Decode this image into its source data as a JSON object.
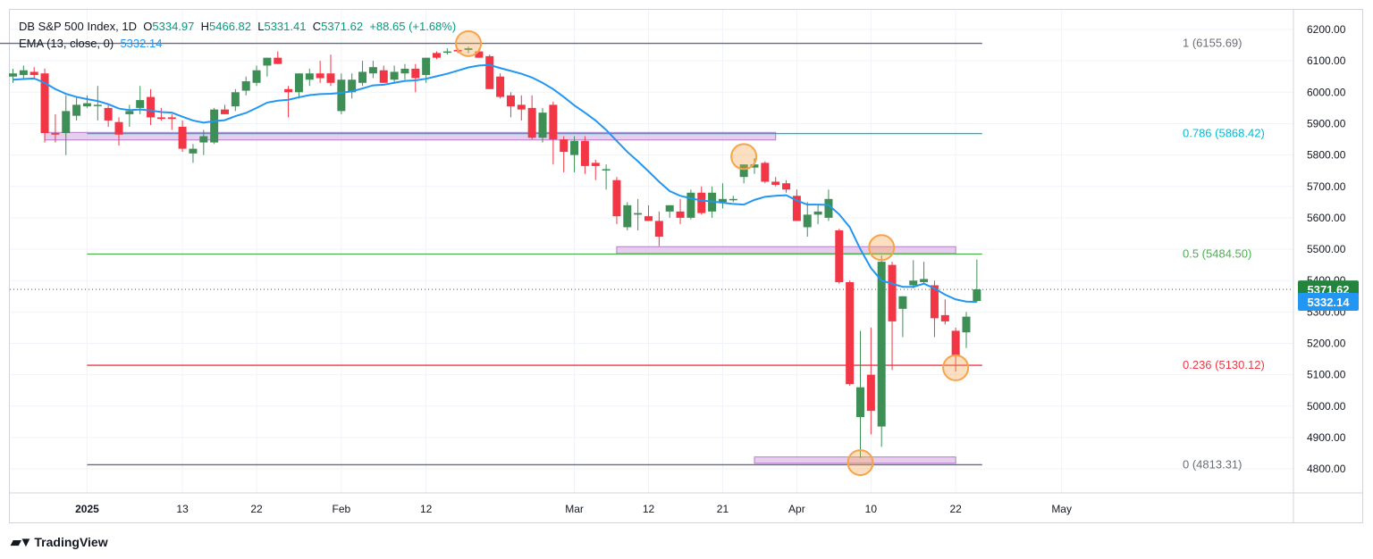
{
  "legend": {
    "symbol": "DB S&P 500 Index, 1D",
    "o_label": "O",
    "o_value": "5334.97",
    "h_label": "H",
    "h_value": "5466.82",
    "l_label": "L",
    "l_value": "5331.41",
    "c_label": "C",
    "c_value": "5371.62",
    "change": "+88.65 (+1.68%)",
    "ema_label": "EMA (13, close, 0)",
    "ema_value": "5332.14"
  },
  "branding": {
    "logo_icon": "tradingview-logo-icon",
    "name": "TradingView"
  },
  "colors": {
    "up": "#3d8f56",
    "down": "#f23645",
    "ema": "#2196f3",
    "fib_1": "#6a6d78",
    "fib_786": "#00bcd4",
    "fib_05": "#4caf50",
    "fib_236": "#f23645",
    "fib_0": "#6a6d78",
    "zone": "#d8b5e4",
    "marker": "#f7a34a",
    "price_tag": "#22843d",
    "ema_tag": "#2196f3"
  },
  "chart_data": {
    "type": "candlestick",
    "title": "DB S&P 500 Index, 1D",
    "ylim": [
      4750,
      6240
    ],
    "y_ticks": [
      "6200.00",
      "6100.00",
      "6000.00",
      "5900.00",
      "5800.00",
      "5700.00",
      "5600.00",
      "5500.00",
      "5400.00",
      "5300.00",
      "5200.00",
      "5100.00",
      "5000.00",
      "4900.00",
      "4800.00"
    ],
    "x_ticks": [
      {
        "label": "2025",
        "i": 7,
        "bold": true
      },
      {
        "label": "13",
        "i": 16
      },
      {
        "label": "22",
        "i": 23
      },
      {
        "label": "Feb",
        "i": 31
      },
      {
        "label": "12",
        "i": 39
      },
      {
        "label": "Mar",
        "i": 53
      },
      {
        "label": "12",
        "i": 60
      },
      {
        "label": "21",
        "i": 67
      },
      {
        "label": "Apr",
        "i": 74
      },
      {
        "label": "10",
        "i": 81
      },
      {
        "label": "22",
        "i": 89
      },
      {
        "label": "May",
        "i": 99
      }
    ],
    "candles": [
      {
        "o": 6050,
        "h": 6075,
        "l": 6030,
        "c": 6060
      },
      {
        "o": 6055,
        "h": 6085,
        "l": 6045,
        "c": 6070
      },
      {
        "o": 6065,
        "h": 6080,
        "l": 6045,
        "c": 6055
      },
      {
        "o": 6060,
        "h": 6075,
        "l": 5840,
        "c": 5870
      },
      {
        "o": 5870,
        "h": 5930,
        "l": 5840,
        "c": 5865
      },
      {
        "o": 5870,
        "h": 5990,
        "l": 5800,
        "c": 5940
      },
      {
        "o": 5925,
        "h": 5985,
        "l": 5910,
        "c": 5960
      },
      {
        "o": 5955,
        "h": 5990,
        "l": 5950,
        "c": 5965
      },
      {
        "o": 5960,
        "h": 6020,
        "l": 5910,
        "c": 5960
      },
      {
        "o": 5950,
        "h": 5960,
        "l": 5890,
        "c": 5910
      },
      {
        "o": 5905,
        "h": 5920,
        "l": 5830,
        "c": 5865
      },
      {
        "o": 5930,
        "h": 5960,
        "l": 5890,
        "c": 5940
      },
      {
        "o": 5950,
        "h": 6020,
        "l": 5930,
        "c": 5975
      },
      {
        "o": 5985,
        "h": 6010,
        "l": 5895,
        "c": 5920
      },
      {
        "o": 5920,
        "h": 5950,
        "l": 5910,
        "c": 5915
      },
      {
        "o": 5920,
        "h": 5930,
        "l": 5880,
        "c": 5915
      },
      {
        "o": 5890,
        "h": 5910,
        "l": 5810,
        "c": 5820
      },
      {
        "o": 5805,
        "h": 5835,
        "l": 5775,
        "c": 5820
      },
      {
        "o": 5840,
        "h": 5880,
        "l": 5800,
        "c": 5860
      },
      {
        "o": 5840,
        "h": 5950,
        "l": 5835,
        "c": 5945
      },
      {
        "o": 5945,
        "h": 5960,
        "l": 5930,
        "c": 5930
      },
      {
        "o": 5955,
        "h": 6010,
        "l": 5940,
        "c": 6000
      },
      {
        "o": 6005,
        "h": 6050,
        "l": 5990,
        "c": 6035
      },
      {
        "o": 6030,
        "h": 6085,
        "l": 6020,
        "c": 6070
      },
      {
        "o": 6085,
        "h": 6110,
        "l": 6050,
        "c": 6110
      },
      {
        "o": 6110,
        "h": 6130,
        "l": 6090,
        "c": 6090
      },
      {
        "o": 6010,
        "h": 6020,
        "l": 5920,
        "c": 6000
      },
      {
        "o": 6000,
        "h": 6060,
        "l": 5980,
        "c": 6060
      },
      {
        "o": 6040,
        "h": 6075,
        "l": 6020,
        "c": 6060
      },
      {
        "o": 6060,
        "h": 6100,
        "l": 6030,
        "c": 6045
      },
      {
        "o": 6060,
        "h": 6120,
        "l": 6020,
        "c": 6030
      },
      {
        "o": 5940,
        "h": 6060,
        "l": 5930,
        "c": 6040
      },
      {
        "o": 6000,
        "h": 6060,
        "l": 5980,
        "c": 6040
      },
      {
        "o": 6030,
        "h": 6100,
        "l": 6020,
        "c": 6065
      },
      {
        "o": 6060,
        "h": 6100,
        "l": 6045,
        "c": 6080
      },
      {
        "o": 6070,
        "h": 6085,
        "l": 6030,
        "c": 6030
      },
      {
        "o": 6040,
        "h": 6085,
        "l": 6030,
        "c": 6065
      },
      {
        "o": 6060,
        "h": 6090,
        "l": 6040,
        "c": 6075
      },
      {
        "o": 6075,
        "h": 6090,
        "l": 6000,
        "c": 6045
      },
      {
        "o": 6055,
        "h": 6110,
        "l": 6030,
        "c": 6110
      },
      {
        "o": 6125,
        "h": 6130,
        "l": 6105,
        "c": 6110
      },
      {
        "o": 6130,
        "h": 6140,
        "l": 6120,
        "c": 6130
      },
      {
        "o": 6135,
        "h": 6140,
        "l": 6125,
        "c": 6130
      },
      {
        "o": 6135,
        "h": 6145,
        "l": 6125,
        "c": 6140
      },
      {
        "o": 6130,
        "h": 6140,
        "l": 6110,
        "c": 6110
      },
      {
        "o": 6115,
        "h": 6120,
        "l": 6010,
        "c": 6010
      },
      {
        "o": 6050,
        "h": 6060,
        "l": 5980,
        "c": 5985
      },
      {
        "o": 5990,
        "h": 6000,
        "l": 5920,
        "c": 5955
      },
      {
        "o": 5960,
        "h": 5990,
        "l": 5910,
        "c": 5945
      },
      {
        "o": 5950,
        "h": 5990,
        "l": 5850,
        "c": 5855
      },
      {
        "o": 5855,
        "h": 5950,
        "l": 5840,
        "c": 5935
      },
      {
        "o": 5960,
        "h": 5970,
        "l": 5770,
        "c": 5850
      },
      {
        "o": 5850,
        "h": 5860,
        "l": 5745,
        "c": 5810
      },
      {
        "o": 5800,
        "h": 5860,
        "l": 5745,
        "c": 5845
      },
      {
        "o": 5845,
        "h": 5860,
        "l": 5740,
        "c": 5765
      },
      {
        "o": 5775,
        "h": 5785,
        "l": 5720,
        "c": 5765
      },
      {
        "o": 5755,
        "h": 5770,
        "l": 5690,
        "c": 5755
      },
      {
        "o": 5720,
        "h": 5730,
        "l": 5580,
        "c": 5605
      },
      {
        "o": 5570,
        "h": 5650,
        "l": 5560,
        "c": 5640
      },
      {
        "o": 5610,
        "h": 5660,
        "l": 5560,
        "c": 5615
      },
      {
        "o": 5605,
        "h": 5640,
        "l": 5590,
        "c": 5590
      },
      {
        "o": 5590,
        "h": 5620,
        "l": 5510,
        "c": 5540
      },
      {
        "o": 5620,
        "h": 5640,
        "l": 5600,
        "c": 5640
      },
      {
        "o": 5620,
        "h": 5660,
        "l": 5580,
        "c": 5600
      },
      {
        "o": 5600,
        "h": 5690,
        "l": 5595,
        "c": 5680
      },
      {
        "o": 5680,
        "h": 5700,
        "l": 5610,
        "c": 5615
      },
      {
        "o": 5620,
        "h": 5700,
        "l": 5600,
        "c": 5680
      },
      {
        "o": 5650,
        "h": 5710,
        "l": 5630,
        "c": 5660
      },
      {
        "o": 5660,
        "h": 5670,
        "l": 5650,
        "c": 5660
      },
      {
        "o": 5730,
        "h": 5770,
        "l": 5710,
        "c": 5770
      },
      {
        "o": 5760,
        "h": 5790,
        "l": 5740,
        "c": 5770
      },
      {
        "o": 5775,
        "h": 5780,
        "l": 5710,
        "c": 5715
      },
      {
        "o": 5715,
        "h": 5730,
        "l": 5700,
        "c": 5705
      },
      {
        "o": 5710,
        "h": 5720,
        "l": 5680,
        "c": 5690
      },
      {
        "o": 5670,
        "h": 5690,
        "l": 5590,
        "c": 5590
      },
      {
        "o": 5570,
        "h": 5650,
        "l": 5540,
        "c": 5610
      },
      {
        "o": 5610,
        "h": 5640,
        "l": 5580,
        "c": 5620
      },
      {
        "o": 5600,
        "h": 5690,
        "l": 5590,
        "c": 5660
      },
      {
        "o": 5560,
        "h": 5565,
        "l": 5390,
        "c": 5395
      },
      {
        "o": 5395,
        "h": 5400,
        "l": 5065,
        "c": 5070
      },
      {
        "o": 4965,
        "h": 5240,
        "l": 4835,
        "c": 5060
      },
      {
        "o": 5100,
        "h": 5250,
        "l": 4910,
        "c": 4985
      },
      {
        "o": 4935,
        "h": 5480,
        "l": 4870,
        "c": 5460
      },
      {
        "o": 5450,
        "h": 5460,
        "l": 5115,
        "c": 5270
      },
      {
        "o": 5310,
        "h": 5350,
        "l": 5220,
        "c": 5350
      },
      {
        "o": 5385,
        "h": 5465,
        "l": 5375,
        "c": 5400
      },
      {
        "o": 5395,
        "h": 5460,
        "l": 5390,
        "c": 5405
      },
      {
        "o": 5385,
        "h": 5400,
        "l": 5220,
        "c": 5280
      },
      {
        "o": 5290,
        "h": 5340,
        "l": 5260,
        "c": 5270
      },
      {
        "o": 5240,
        "h": 5250,
        "l": 5110,
        "c": 5160
      },
      {
        "o": 5235,
        "h": 5300,
        "l": 5185,
        "c": 5285
      },
      {
        "o": 5335,
        "h": 5467,
        "l": 5331,
        "c": 5372
      }
    ],
    "ema": [
      6040,
      6042,
      6044,
      6030,
      6010,
      5995,
      5985,
      5978,
      5972,
      5962,
      5948,
      5943,
      5945,
      5942,
      5937,
      5935,
      5922,
      5910,
      5903,
      5908,
      5911,
      5924,
      5934,
      5950,
      5967,
      5973,
      5976,
      5984,
      5991,
      5994,
      5995,
      5998,
      6003,
      6012,
      6022,
      6024,
      6030,
      6036,
      6038,
      6043,
      6051,
      6059,
      6069,
      6079,
      6085,
      6087,
      6077,
      6068,
      6059,
      6047,
      6030,
      6010,
      5985,
      5958,
      5935,
      5910,
      5880,
      5845,
      5810,
      5780,
      5748,
      5715,
      5685,
      5670,
      5662,
      5655,
      5652,
      5648,
      5644,
      5642,
      5657,
      5667,
      5670,
      5672,
      5655,
      5642,
      5642,
      5641,
      5611,
      5570,
      5500,
      5440,
      5400,
      5390,
      5380,
      5380,
      5390,
      5375,
      5355,
      5340,
      5333,
      5332
    ],
    "fib_levels": [
      {
        "label": "1 (6155.69)",
        "value": 6155.69,
        "color": "#6a6d78",
        "from_i": -2
      },
      {
        "label": "0.786 (5868.42)",
        "value": 5868.42,
        "color": "#00bcd4",
        "from_i": 7
      },
      {
        "label": "0.5 (5484.50)",
        "value": 5484.5,
        "color": "#4caf50",
        "from_i": 7
      },
      {
        "label": "0.236 (5130.12)",
        "value": 5130.12,
        "color": "#f23645",
        "from_i": 7
      },
      {
        "label": "0 (4813.31)",
        "value": 4813.31,
        "color": "#6a6d78",
        "from_i": 7
      }
    ],
    "zones": [
      {
        "from_i": 3,
        "to_i": 72,
        "y_top": 5872,
        "y_bottom": 5848
      },
      {
        "from_i": 57,
        "to_i": 89,
        "y_top": 5508,
        "y_bottom": 5486
      },
      {
        "from_i": 70,
        "to_i": 89,
        "y_top": 4838,
        "y_bottom": 4818
      }
    ],
    "markers": [
      {
        "i": 43,
        "y": 6155
      },
      {
        "i": 69,
        "y": 5795
      },
      {
        "i": 82,
        "y": 5505
      },
      {
        "i": 80,
        "y": 4820
      },
      {
        "i": 89,
        "y": 5122
      }
    ],
    "last_price": {
      "value": 5371.62,
      "label": "5371.62"
    },
    "ema_last": {
      "value": 5332.14,
      "label": "5332.14"
    }
  }
}
